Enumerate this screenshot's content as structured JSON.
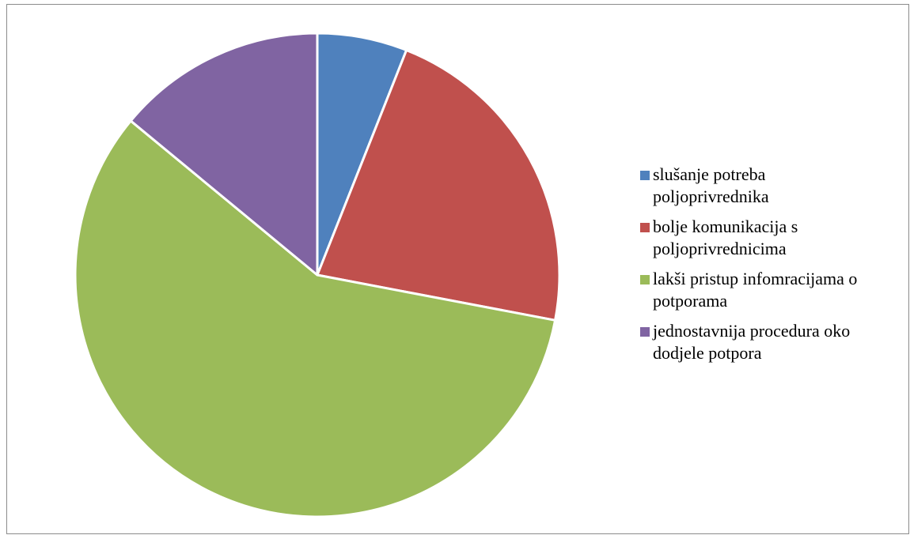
{
  "chart_data": {
    "type": "pie",
    "title": "",
    "categories": [
      "slušanje potreba\npoljoprivrednika",
      "bolje komunikacija s\npoljoprivrednicima",
      "lakši pristup infomracijama o\npotporama",
      "jednostavnija procedura oko\ndodjele potpora"
    ],
    "values": [
      6,
      22,
      58,
      14
    ],
    "colors": [
      "#4F81BD",
      "#C0504D",
      "#9BBB59",
      "#8064A2"
    ],
    "legend_position": "right",
    "start_angle": "top",
    "direction": "clockwise"
  }
}
